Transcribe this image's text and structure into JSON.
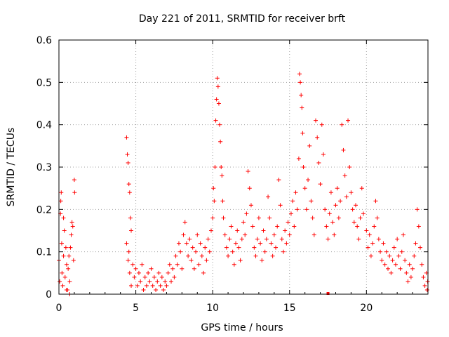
{
  "chart_data": {
    "type": "scatter",
    "title": "Day 221 of 2011, SRMTID for receiver brft",
    "xlabel": "GPS time / hours",
    "ylabel": "SRMTID / TECUs",
    "xlim": [
      0,
      24
    ],
    "ylim": [
      0,
      0.6
    ],
    "x_ticks": [
      0,
      5,
      10,
      15,
      20
    ],
    "x_tick_labels": [
      "0",
      "5",
      "10",
      "15",
      "20"
    ],
    "y_ticks": [
      0,
      0.1,
      0.2,
      0.3,
      0.4,
      0.5,
      0.6
    ],
    "y_tick_labels": [
      "0",
      "0.1",
      "0.2",
      "0.3",
      "0.4",
      "0.5",
      "0.6"
    ],
    "grid": true,
    "marker": "plus",
    "marker_color": "#ff0000",
    "series": [
      {
        "name": "SRMTID",
        "points": [
          [
            0.0,
            0.08
          ],
          [
            0.05,
            0.03
          ],
          [
            0.1,
            0.19
          ],
          [
            0.12,
            0.22
          ],
          [
            0.15,
            0.24
          ],
          [
            0.18,
            0.12
          ],
          [
            0.2,
            0.05
          ],
          [
            0.25,
            0.02
          ],
          [
            0.3,
            0.09
          ],
          [
            0.35,
            0.15
          ],
          [
            0.4,
            0.04
          ],
          [
            0.45,
            0.11
          ],
          [
            0.5,
            0.07
          ],
          [
            0.55,
            0.01
          ],
          [
            0.6,
            0.06
          ],
          [
            0.65,
            0.09
          ],
          [
            0.7,
            0.03
          ],
          [
            0.75,
            0.11
          ],
          [
            0.8,
            0.14
          ],
          [
            0.85,
            0.17
          ],
          [
            0.9,
            0.16
          ],
          [
            0.95,
            0.08
          ],
          [
            1.0,
            0.27
          ],
          [
            1.02,
            0.24
          ],
          [
            0.3,
            0.18
          ],
          [
            0.5,
            0.01
          ],
          [
            0.7,
            0.0
          ],
          [
            4.4,
            0.37
          ],
          [
            4.45,
            0.33
          ],
          [
            4.5,
            0.31
          ],
          [
            4.55,
            0.26
          ],
          [
            4.6,
            0.24
          ],
          [
            4.65,
            0.18
          ],
          [
            4.7,
            0.15
          ],
          [
            4.4,
            0.12
          ],
          [
            4.5,
            0.08
          ],
          [
            4.55,
            0.1
          ],
          [
            4.6,
            0.05
          ],
          [
            4.7,
            0.02
          ],
          [
            4.8,
            0.07
          ],
          [
            4.9,
            0.04
          ],
          [
            5.0,
            0.06
          ],
          [
            5.1,
            0.02
          ],
          [
            5.2,
            0.05
          ],
          [
            5.3,
            0.03
          ],
          [
            5.4,
            0.07
          ],
          [
            5.5,
            0.01
          ],
          [
            5.6,
            0.04
          ],
          [
            5.7,
            0.02
          ],
          [
            5.8,
            0.05
          ],
          [
            5.9,
            0.03
          ],
          [
            6.0,
            0.06
          ],
          [
            6.1,
            0.02
          ],
          [
            6.2,
            0.04
          ],
          [
            6.3,
            0.01
          ],
          [
            6.4,
            0.03
          ],
          [
            6.5,
            0.05
          ],
          [
            6.6,
            0.02
          ],
          [
            6.7,
            0.04
          ],
          [
            6.8,
            0.01
          ],
          [
            6.9,
            0.03
          ],
          [
            7.0,
            0.02
          ],
          [
            7.1,
            0.05
          ],
          [
            7.2,
            0.07
          ],
          [
            7.3,
            0.03
          ],
          [
            7.4,
            0.06
          ],
          [
            7.5,
            0.04
          ],
          [
            7.6,
            0.09
          ],
          [
            7.7,
            0.07
          ],
          [
            7.8,
            0.12
          ],
          [
            7.9,
            0.1
          ],
          [
            8.0,
            0.06
          ],
          [
            8.1,
            0.14
          ],
          [
            8.2,
            0.17
          ],
          [
            8.3,
            0.12
          ],
          [
            8.4,
            0.09
          ],
          [
            8.5,
            0.13
          ],
          [
            8.6,
            0.08
          ],
          [
            8.7,
            0.11
          ],
          [
            8.8,
            0.06
          ],
          [
            8.9,
            0.1
          ],
          [
            9.0,
            0.14
          ],
          [
            9.1,
            0.07
          ],
          [
            9.2,
            0.12
          ],
          [
            9.3,
            0.09
          ],
          [
            9.4,
            0.05
          ],
          [
            9.5,
            0.11
          ],
          [
            9.6,
            0.08
          ],
          [
            9.7,
            0.13
          ],
          [
            9.8,
            0.1
          ],
          [
            9.9,
            0.15
          ],
          [
            10.0,
            0.18
          ],
          [
            10.05,
            0.25
          ],
          [
            10.1,
            0.22
          ],
          [
            10.15,
            0.3
          ],
          [
            10.2,
            0.41
          ],
          [
            10.25,
            0.46
          ],
          [
            10.3,
            0.51
          ],
          [
            10.35,
            0.49
          ],
          [
            10.4,
            0.45
          ],
          [
            10.45,
            0.4
          ],
          [
            10.5,
            0.36
          ],
          [
            10.55,
            0.3
          ],
          [
            10.6,
            0.28
          ],
          [
            10.65,
            0.22
          ],
          [
            10.7,
            0.18
          ],
          [
            10.8,
            0.14
          ],
          [
            10.9,
            0.11
          ],
          [
            11.0,
            0.09
          ],
          [
            11.1,
            0.13
          ],
          [
            11.2,
            0.16
          ],
          [
            11.3,
            0.1
          ],
          [
            11.4,
            0.07
          ],
          [
            11.5,
            0.12
          ],
          [
            11.6,
            0.15
          ],
          [
            11.7,
            0.11
          ],
          [
            11.8,
            0.08
          ],
          [
            11.9,
            0.13
          ],
          [
            12.0,
            0.17
          ],
          [
            12.1,
            0.14
          ],
          [
            12.2,
            0.19
          ],
          [
            12.3,
            0.29
          ],
          [
            12.4,
            0.25
          ],
          [
            12.5,
            0.21
          ],
          [
            12.6,
            0.16
          ],
          [
            12.7,
            0.11
          ],
          [
            12.8,
            0.09
          ],
          [
            12.9,
            0.13
          ],
          [
            13.0,
            0.18
          ],
          [
            13.1,
            0.12
          ],
          [
            13.2,
            0.08
          ],
          [
            13.3,
            0.15
          ],
          [
            13.4,
            0.1
          ],
          [
            13.5,
            0.13
          ],
          [
            13.6,
            0.23
          ],
          [
            13.7,
            0.18
          ],
          [
            13.8,
            0.12
          ],
          [
            13.9,
            0.09
          ],
          [
            14.0,
            0.14
          ],
          [
            14.1,
            0.11
          ],
          [
            14.2,
            0.16
          ],
          [
            14.3,
            0.27
          ],
          [
            14.4,
            0.21
          ],
          [
            14.5,
            0.13
          ],
          [
            14.6,
            0.1
          ],
          [
            14.7,
            0.15
          ],
          [
            14.8,
            0.12
          ],
          [
            14.9,
            0.17
          ],
          [
            15.0,
            0.14
          ],
          [
            15.1,
            0.19
          ],
          [
            15.2,
            0.22
          ],
          [
            15.3,
            0.16
          ],
          [
            15.4,
            0.24
          ],
          [
            15.5,
            0.2
          ],
          [
            15.6,
            0.32
          ],
          [
            15.65,
            0.52
          ],
          [
            15.7,
            0.5
          ],
          [
            15.75,
            0.47
          ],
          [
            15.8,
            0.44
          ],
          [
            15.85,
            0.38
          ],
          [
            15.9,
            0.3
          ],
          [
            16.0,
            0.25
          ],
          [
            16.1,
            0.2
          ],
          [
            16.2,
            0.27
          ],
          [
            16.3,
            0.35
          ],
          [
            16.4,
            0.22
          ],
          [
            16.5,
            0.18
          ],
          [
            16.6,
            0.14
          ],
          [
            16.7,
            0.41
          ],
          [
            16.8,
            0.37
          ],
          [
            16.9,
            0.31
          ],
          [
            17.0,
            0.26
          ],
          [
            17.1,
            0.4
          ],
          [
            17.2,
            0.33
          ],
          [
            17.3,
            0.2
          ],
          [
            17.4,
            0.16
          ],
          [
            17.5,
            0.13
          ],
          [
            17.6,
            0.19
          ],
          [
            17.7,
            0.24
          ],
          [
            17.8,
            0.17
          ],
          [
            17.9,
            0.14
          ],
          [
            18.0,
            0.21
          ],
          [
            18.1,
            0.25
          ],
          [
            18.2,
            0.18
          ],
          [
            18.3,
            0.22
          ],
          [
            18.4,
            0.4
          ],
          [
            18.5,
            0.34
          ],
          [
            18.6,
            0.28
          ],
          [
            18.7,
            0.23
          ],
          [
            18.8,
            0.41
          ],
          [
            18.9,
            0.3
          ],
          [
            19.0,
            0.24
          ],
          [
            19.1,
            0.2
          ],
          [
            19.2,
            0.17
          ],
          [
            19.3,
            0.21
          ],
          [
            19.4,
            0.16
          ],
          [
            19.5,
            0.13
          ],
          [
            19.6,
            0.18
          ],
          [
            19.7,
            0.25
          ],
          [
            19.8,
            0.19
          ],
          [
            20.0,
            0.15
          ],
          [
            20.1,
            0.11
          ],
          [
            20.2,
            0.14
          ],
          [
            20.3,
            0.09
          ],
          [
            20.4,
            0.12
          ],
          [
            20.5,
            0.16
          ],
          [
            20.6,
            0.22
          ],
          [
            20.7,
            0.18
          ],
          [
            20.8,
            0.13
          ],
          [
            20.9,
            0.1
          ],
          [
            21.0,
            0.08
          ],
          [
            21.1,
            0.12
          ],
          [
            21.2,
            0.07
          ],
          [
            21.3,
            0.1
          ],
          [
            21.4,
            0.06
          ],
          [
            21.5,
            0.09
          ],
          [
            21.6,
            0.05
          ],
          [
            21.7,
            0.08
          ],
          [
            21.8,
            0.11
          ],
          [
            21.9,
            0.07
          ],
          [
            22.0,
            0.13
          ],
          [
            22.1,
            0.09
          ],
          [
            22.2,
            0.06
          ],
          [
            22.3,
            0.1
          ],
          [
            22.4,
            0.14
          ],
          [
            22.5,
            0.08
          ],
          [
            22.6,
            0.05
          ],
          [
            22.7,
            0.03
          ],
          [
            22.8,
            0.07
          ],
          [
            22.9,
            0.04
          ],
          [
            23.0,
            0.06
          ],
          [
            23.1,
            0.09
          ],
          [
            23.2,
            0.12
          ],
          [
            23.3,
            0.2
          ],
          [
            23.4,
            0.16
          ],
          [
            23.5,
            0.11
          ],
          [
            23.6,
            0.07
          ],
          [
            23.7,
            0.04
          ],
          [
            23.8,
            0.02
          ],
          [
            23.9,
            0.05
          ],
          [
            23.95,
            0.01
          ],
          [
            23.98,
            0.03
          ]
        ]
      }
    ],
    "highlight_point": [
      17.5,
      0.0
    ]
  }
}
